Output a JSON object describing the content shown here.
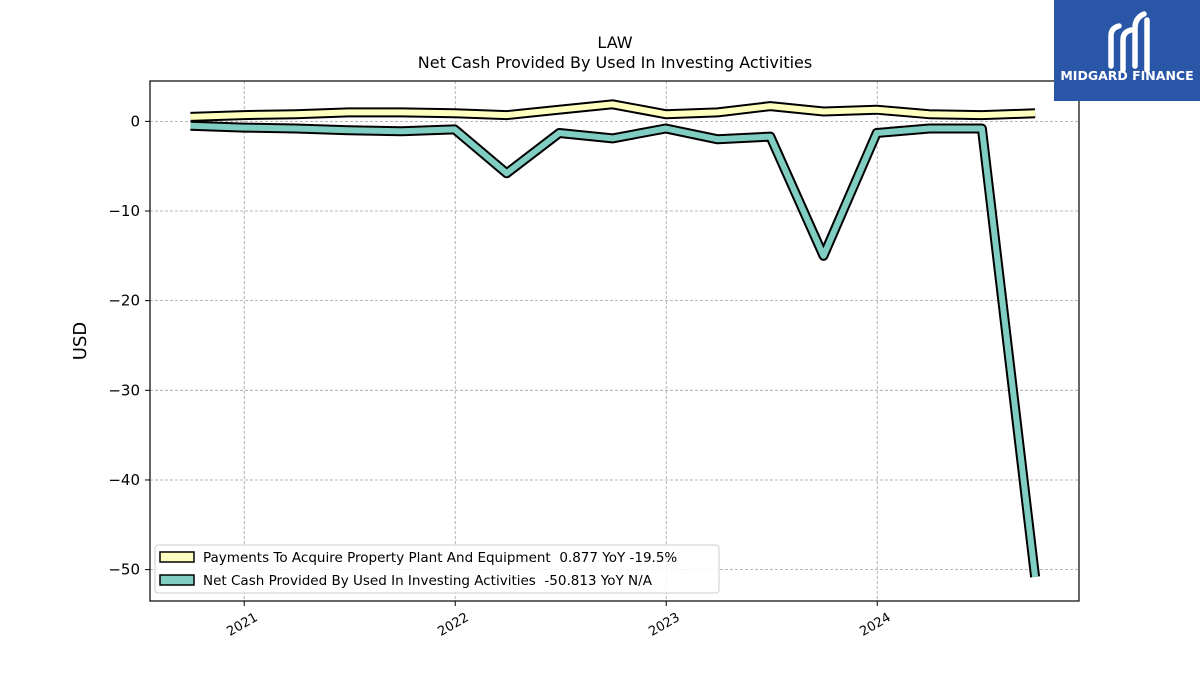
{
  "brand": {
    "name": "MIDGARD FINANCE",
    "color": "#2a56a8"
  },
  "chart_data": {
    "type": "line",
    "title": "LAW",
    "subtitle": "Net Cash Provided By Used In Investing Activities",
    "xlabel": "",
    "ylabel": "USD",
    "ylim": [
      -53.5,
      4.5
    ],
    "xlim": [
      "2020-07-22",
      "2024-12-15"
    ],
    "y_ticks": [
      0,
      -10,
      -20,
      -30,
      -40,
      -50
    ],
    "y_tick_labels": [
      "0",
      "−10",
      "−20",
      "−30",
      "−40",
      "−50"
    ],
    "x_ticks": [
      "2021-01-01",
      "2022-01-01",
      "2023-01-01",
      "2024-01-01"
    ],
    "x_tick_labels": [
      "2021",
      "2022",
      "2023",
      "2024"
    ],
    "grid": true,
    "legend_position": "lower-left",
    "series": [
      {
        "name": "Payments To Acquire Property Plant And Equipment  0.877 YoY -19.5%",
        "color": "#ffffbf",
        "x": [
          "2020-09-30",
          "2020-12-31",
          "2021-03-31",
          "2021-06-30",
          "2021-09-30",
          "2021-12-31",
          "2022-03-31",
          "2022-06-30",
          "2022-09-30",
          "2022-12-31",
          "2023-03-31",
          "2023-06-30",
          "2023-09-30",
          "2023-12-31",
          "2024-03-31",
          "2024-06-30",
          "2024-09-30"
        ],
        "values": [
          0.5,
          0.7,
          0.8,
          1.0,
          1.0,
          0.9,
          0.7,
          1.3,
          1.9,
          0.8,
          1.0,
          1.7,
          1.1,
          1.3,
          0.8,
          0.7,
          0.9
        ]
      },
      {
        "name": "Net Cash Provided By Used In Investing Activities  -50.813 YoY N/A",
        "color": "#80cdc1",
        "x": [
          "2020-09-30",
          "2020-12-31",
          "2021-03-31",
          "2021-06-30",
          "2021-09-30",
          "2021-12-31",
          "2022-03-31",
          "2022-06-30",
          "2022-09-30",
          "2022-12-31",
          "2023-03-31",
          "2023-06-30",
          "2023-09-30",
          "2023-12-31",
          "2024-03-31",
          "2024-06-30",
          "2024-09-30"
        ],
        "values": [
          -0.5,
          -0.7,
          -0.8,
          -1.0,
          -1.1,
          -0.9,
          -5.8,
          -1.3,
          -1.9,
          -0.8,
          -2.0,
          -1.7,
          -15.0,
          -1.3,
          -0.8,
          -0.8,
          -50.813
        ]
      }
    ]
  }
}
